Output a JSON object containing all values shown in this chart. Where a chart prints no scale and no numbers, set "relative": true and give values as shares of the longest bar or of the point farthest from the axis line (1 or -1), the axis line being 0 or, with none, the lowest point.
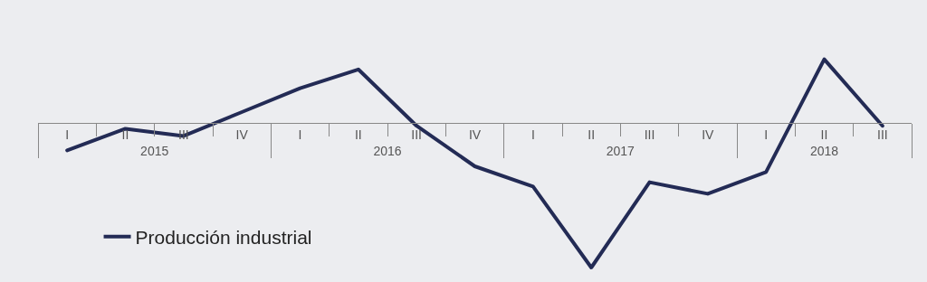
{
  "chart_data": {
    "type": "line",
    "relative": true,
    "categories": [
      "I",
      "II",
      "III",
      "IV",
      "I",
      "II",
      "III",
      "IV",
      "I",
      "II",
      "III",
      "IV",
      "I",
      "II",
      "III"
    ],
    "annotations": [
      "2015",
      "2016",
      "2017",
      "2018"
    ],
    "series": [
      {
        "name": "Producción industrial",
        "color": "#232b55",
        "values": [
          -0.19,
          -0.04,
          -0.09,
          0.075,
          0.24,
          0.37,
          -0.02,
          -0.3,
          -0.44,
          -1,
          -0.41,
          -0.49,
          -0.34,
          0.44,
          -0.02
        ]
      }
    ],
    "legend": "bottom left",
    "marker": "none",
    "line_style": "solid",
    "grid": false
  }
}
